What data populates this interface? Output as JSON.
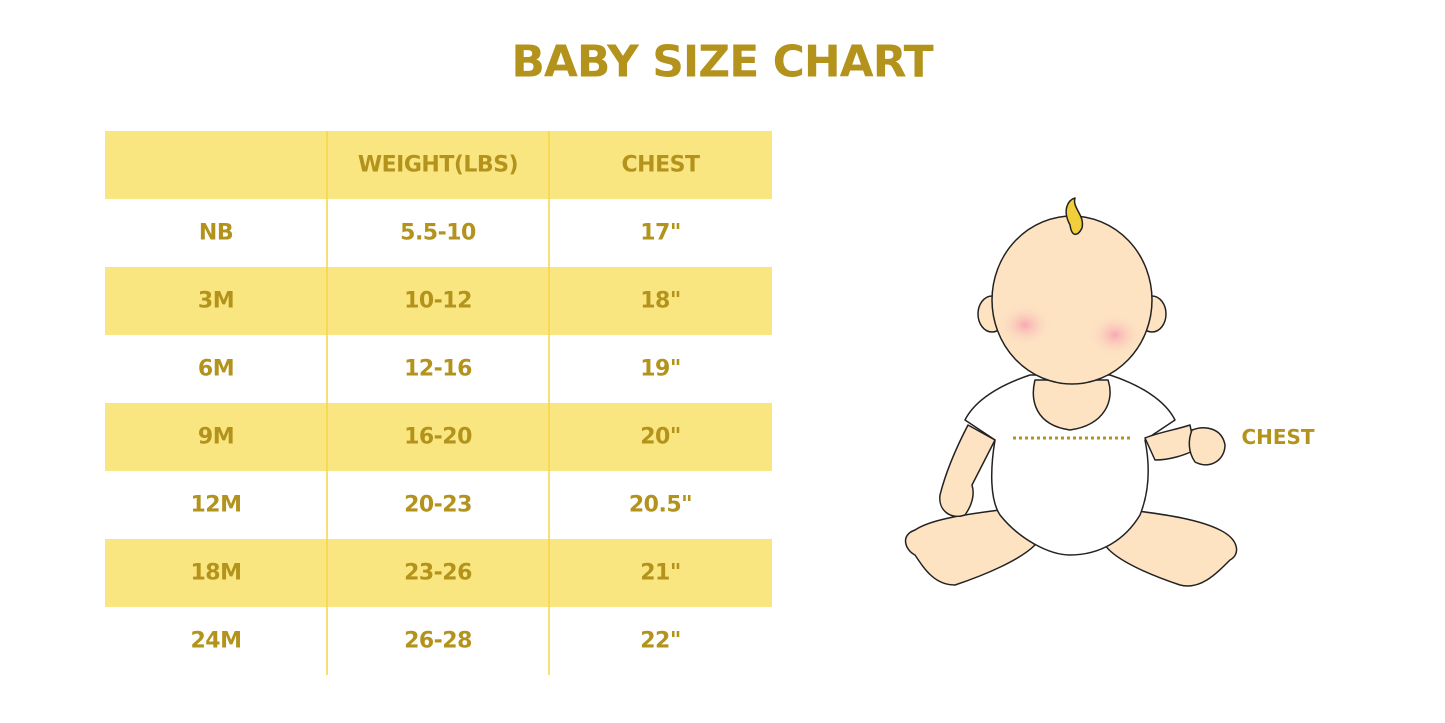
{
  "title": "BABY SIZE CHART",
  "table": {
    "header": [
      "WEIGHT(LBS)",
      "CHEST"
    ],
    "rows": [
      [
        "NB",
        "5.5-10",
        "17\""
      ],
      [
        "3M",
        "10-12",
        "18\""
      ],
      [
        "6M",
        "12-16",
        "19\""
      ],
      [
        "9M",
        "16-20",
        "20\""
      ],
      [
        "12M",
        "20-23",
        "20.5\""
      ],
      [
        "18M",
        "23-26",
        "21\""
      ],
      [
        "24M",
        "26-28",
        "22\""
      ]
    ]
  },
  "illustration": {
    "label": "CHEST"
  }
}
